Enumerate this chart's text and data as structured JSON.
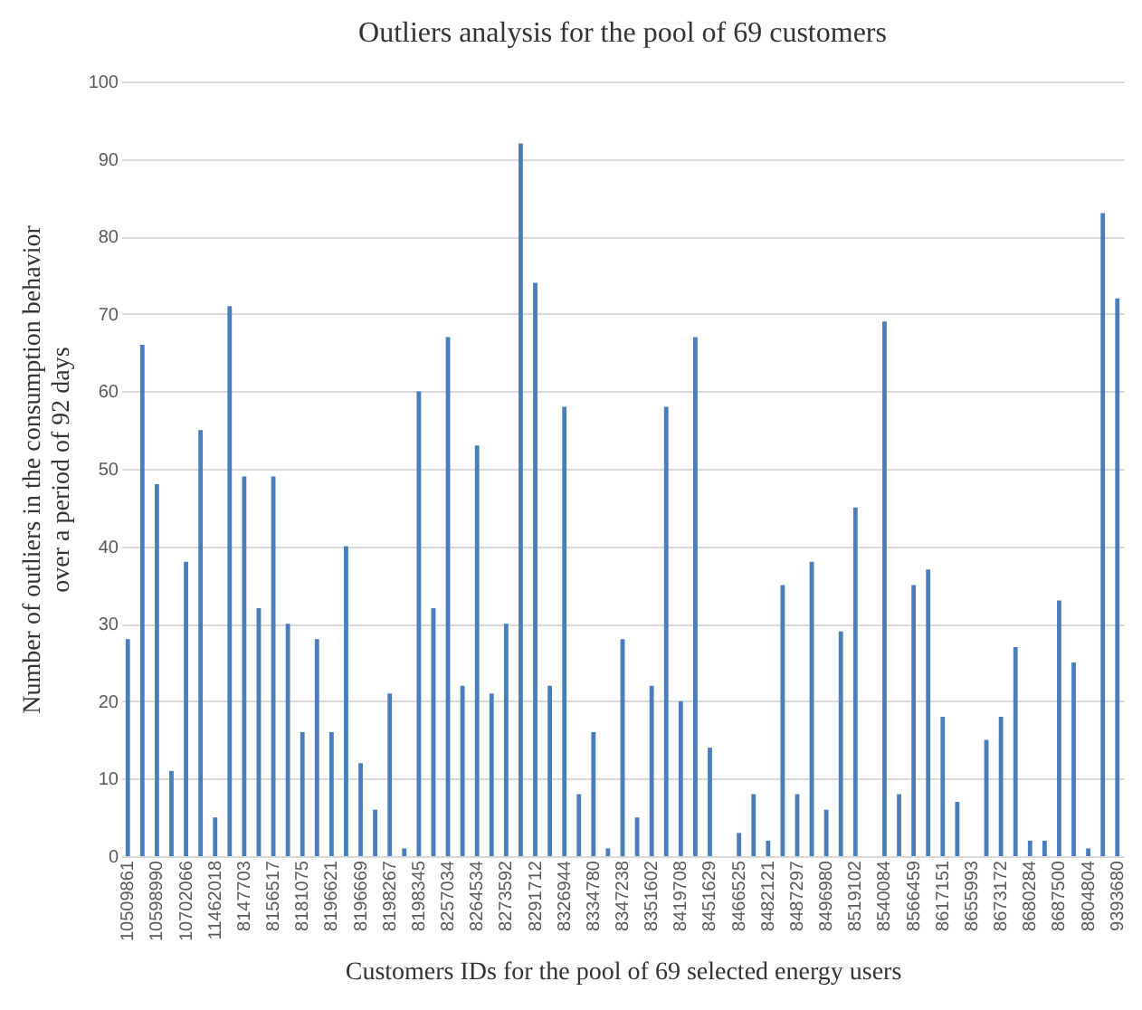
{
  "chart_data": {
    "type": "bar",
    "title": "Outliers analysis for the pool of 69 customers",
    "xlabel": "Customers IDs for the pool of 69 selected energy users",
    "ylabel": "Number of outliers in the consumption behavior\nover a period of 92 days",
    "categories": [
      "10509861",
      null,
      "10598990",
      null,
      "10702066",
      null,
      "11462018",
      null,
      "8147703",
      null,
      "8156517",
      null,
      "8181075",
      null,
      "8196621",
      null,
      "8196669",
      null,
      "8198267",
      null,
      "8198345",
      null,
      "8257034",
      null,
      "8264534",
      null,
      "8273592",
      null,
      "8291712",
      null,
      "8326944",
      null,
      "8334780",
      null,
      "8347238",
      null,
      "8351602",
      null,
      "8419708",
      null,
      "8451629",
      null,
      "8466525",
      null,
      "8482121",
      null,
      "8487297",
      null,
      "8496980",
      null,
      "8519102",
      null,
      "8540084",
      null,
      "8566459",
      null,
      "8617151",
      null,
      "8655993",
      null,
      "8673172",
      null,
      "8680284",
      null,
      "8687500",
      null,
      "8804804",
      null,
      "9393680"
    ],
    "values": [
      28,
      66,
      48,
      11,
      38,
      55,
      5,
      71,
      49,
      32,
      49,
      30,
      16,
      28,
      16,
      40,
      12,
      6,
      21,
      1,
      60,
      32,
      67,
      22,
      53,
      21,
      30,
      92,
      74,
      22,
      58,
      8,
      16,
      1,
      28,
      5,
      22,
      58,
      20,
      67,
      14,
      0,
      3,
      8,
      2,
      35,
      8,
      38,
      6,
      29,
      45,
      0,
      69,
      8,
      35,
      37,
      18,
      7,
      0,
      15,
      18,
      27,
      2,
      2,
      33,
      25,
      1,
      83,
      72
    ],
    "color": "#4a7ebb",
    "ylim": [
      0,
      100
    ],
    "yticks": [
      0,
      10,
      20,
      30,
      40,
      50,
      60,
      70,
      80,
      90,
      100
    ],
    "grid": "y"
  }
}
